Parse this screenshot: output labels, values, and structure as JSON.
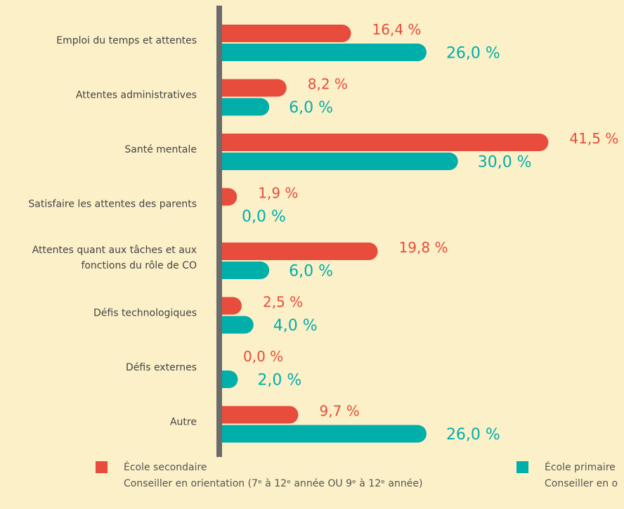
{
  "chart_data": {
    "type": "hbar",
    "categories": [
      "Emploi du temps et attentes",
      "Attentes administratives",
      "Santé mentale",
      "Satisfaire les attentes des parents",
      [
        "Attentes quant aux tâches et aux",
        "fonctions du rôle de CO"
      ],
      "Défis technologiques",
      "Défis externes",
      "Autre"
    ],
    "series": [
      {
        "name": "École secondaire",
        "description": "Conseiller en orientation (7ᵉ à 12ᵉ année OU 9ᵉ à 12ᵉ année)",
        "color": "#e84c3d",
        "values": [
          16.4,
          8.2,
          41.5,
          1.9,
          19.8,
          2.5,
          0.0,
          9.7
        ],
        "value_labels": [
          "16,4 %",
          "8,2 %",
          "41,5 %",
          "1,9 %",
          "19,8 %",
          "2,5 %",
          "0,0 %",
          "9,7 %"
        ]
      },
      {
        "name": "École primaire",
        "description": "Conseiller en o",
        "color": "#00aeaa",
        "values": [
          26.0,
          6.0,
          30.0,
          0.0,
          6.0,
          4.0,
          2.0,
          26.0
        ],
        "value_labels": [
          "26,0 %",
          "6,0 %",
          "30,0 %",
          "0,0 %",
          "6,0 %",
          "4,0 %",
          "2,0 %",
          "26,0 %"
        ]
      }
    ],
    "xlim": [
      0,
      42
    ]
  }
}
